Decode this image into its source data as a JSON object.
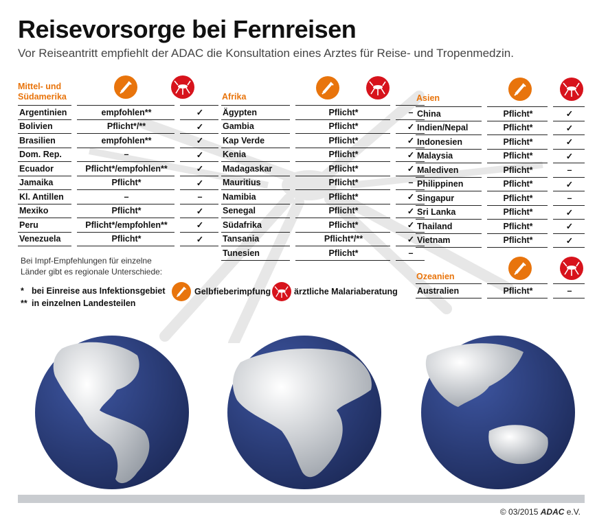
{
  "title": "Reisevorsorge bei Fernreisen",
  "subtitle": "Vor Reiseantritt empfiehlt der ADAC die Konsultation eines Arztes für Reise- und Tropenmedzin.",
  "colors": {
    "accent_orange": "#e8740c",
    "accent_red": "#d7131c",
    "globe_ocean": "#2b3d78"
  },
  "icons": {
    "yellow_fever": "syringe-icon",
    "malaria": "mosquito-icon"
  },
  "regions": {
    "amerika": {
      "title": "Mittel- und Südamerika",
      "rows": [
        {
          "country": "Argentinien",
          "vaccine": "empfohlen**",
          "malaria": "✓"
        },
        {
          "country": "Bolivien",
          "vaccine": "Pflicht*/**",
          "malaria": "✓"
        },
        {
          "country": "Brasilien",
          "vaccine": "empfohlen**",
          "malaria": "✓"
        },
        {
          "country": "Dom. Rep.",
          "vaccine": "–",
          "malaria": "✓"
        },
        {
          "country": "Ecuador",
          "vaccine": "Pflicht*/empfohlen**",
          "malaria": "✓"
        },
        {
          "country": "Jamaika",
          "vaccine": "Pflicht*",
          "malaria": "✓"
        },
        {
          "country": "Kl. Antillen",
          "vaccine": "–",
          "malaria": "–"
        },
        {
          "country": "Mexiko",
          "vaccine": "Pflicht*",
          "malaria": "✓"
        },
        {
          "country": "Peru",
          "vaccine": "Pflicht*/empfohlen**",
          "malaria": "✓"
        },
        {
          "country": "Venezuela",
          "vaccine": "Pflicht*",
          "malaria": "✓"
        }
      ]
    },
    "afrika": {
      "title": "Afrika",
      "rows": [
        {
          "country": "Ägypten",
          "vaccine": "Pflicht*",
          "malaria": "–"
        },
        {
          "country": "Gambia",
          "vaccine": "Pflicht*",
          "malaria": "✓"
        },
        {
          "country": "Kap Verde",
          "vaccine": "Pflicht*",
          "malaria": "✓"
        },
        {
          "country": "Kenia",
          "vaccine": "Pflicht*",
          "malaria": "✓"
        },
        {
          "country": "Madagaskar",
          "vaccine": "Pflicht*",
          "malaria": "✓"
        },
        {
          "country": "Mauritius",
          "vaccine": "Pflicht*",
          "malaria": "–"
        },
        {
          "country": "Namibia",
          "vaccine": "Pflicht*",
          "malaria": "✓"
        },
        {
          "country": "Senegal",
          "vaccine": "Pflicht*",
          "malaria": "✓"
        },
        {
          "country": "Südafrika",
          "vaccine": "Pflicht*",
          "malaria": "✓"
        },
        {
          "country": "Tansania",
          "vaccine": "Pflicht*/**",
          "malaria": "✓"
        },
        {
          "country": "Tunesien",
          "vaccine": "Pflicht*",
          "malaria": "–"
        }
      ]
    },
    "asien": {
      "title": "Asien",
      "rows": [
        {
          "country": "China",
          "vaccine": "Pflicht*",
          "malaria": "✓"
        },
        {
          "country": "Indien/Nepal",
          "vaccine": "Pflicht*",
          "malaria": "✓"
        },
        {
          "country": "Indonesien",
          "vaccine": "Pflicht*",
          "malaria": "✓"
        },
        {
          "country": "Malaysia",
          "vaccine": "Pflicht*",
          "malaria": "✓"
        },
        {
          "country": "Malediven",
          "vaccine": "Pflicht*",
          "malaria": "–"
        },
        {
          "country": "Philippinen",
          "vaccine": "Pflicht*",
          "malaria": "✓"
        },
        {
          "country": "Singapur",
          "vaccine": "Pflicht*",
          "malaria": "–"
        },
        {
          "country": "Sri Lanka",
          "vaccine": "Pflicht*",
          "malaria": "✓"
        },
        {
          "country": "Thailand",
          "vaccine": "Pflicht*",
          "malaria": "✓"
        },
        {
          "country": "Vietnam",
          "vaccine": "Pflicht*",
          "malaria": "✓"
        }
      ]
    },
    "ozeanien": {
      "title": "Ozeanien",
      "rows": [
        {
          "country": "Australien",
          "vaccine": "Pflicht*",
          "malaria": "–"
        }
      ]
    }
  },
  "note": {
    "line1": "Bei Impf-Empfehlungen für einzelne",
    "line2": "Länder gibt es regionale Unterschiede:"
  },
  "legend": {
    "star1_mark": "*",
    "star1_text": "bei Einreise aus Infektionsgebiet",
    "star2_mark": "**",
    "star2_text": "in einzelnen Landesteilen",
    "yellow_fever_label": "Gelbfieberimpfung",
    "malaria_label": "ärztliche Malariaberatung"
  },
  "footer": {
    "copyright": "© 03/2015",
    "brand": "ADAC",
    "suffix": " e.V."
  }
}
